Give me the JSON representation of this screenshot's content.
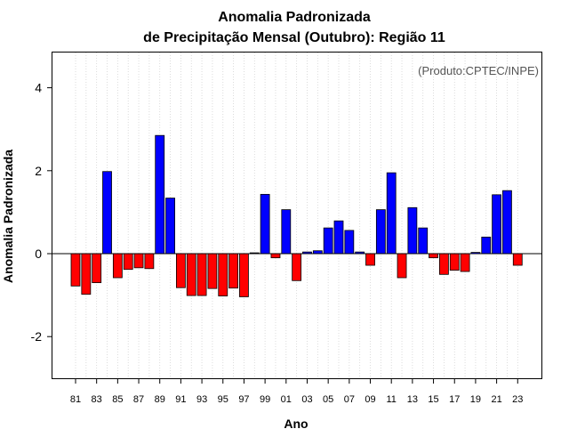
{
  "chart_data": {
    "type": "bar",
    "title_line1": "Anomalia Padronizada",
    "title_line2": "de Precipitação Mensal (Outubro): Região 11",
    "xlabel": "Ano",
    "ylabel": "Anomalia Padronizada",
    "source": "(Produto:CPTEC/INPE)",
    "ylim": [
      -3.0,
      4.8
    ],
    "yticks": [
      -2,
      0,
      2,
      4
    ],
    "ytick_labels": [
      "-2",
      "0",
      "2",
      "4"
    ],
    "categories": [
      "1981",
      "1982",
      "1983",
      "1984",
      "1985",
      "1986",
      "1987",
      "1988",
      "1989",
      "1990",
      "1991",
      "1992",
      "1993",
      "1994",
      "1995",
      "1996",
      "1997",
      "1998",
      "1999",
      "2000",
      "2001",
      "2002",
      "2003",
      "2004",
      "2005",
      "2006",
      "2007",
      "2008",
      "2009",
      "2010",
      "2011",
      "2012",
      "2013",
      "2014",
      "2015",
      "2016",
      "2017",
      "2018",
      "2019",
      "2020",
      "2021",
      "2022",
      "2023"
    ],
    "xtick_labels": [
      "81",
      "83",
      "85",
      "87",
      "89",
      "91",
      "93",
      "95",
      "97",
      "99",
      "01",
      "03",
      "05",
      "07",
      "09",
      "11",
      "13",
      "15",
      "17",
      "19",
      "21",
      "23"
    ],
    "values": [
      -0.78,
      -0.98,
      -0.7,
      1.98,
      -0.58,
      -0.38,
      -0.34,
      -0.36,
      2.85,
      1.34,
      -0.82,
      -1.01,
      -1.01,
      -0.84,
      -1.02,
      -0.83,
      -1.04,
      0.02,
      1.43,
      -0.1,
      1.06,
      -0.65,
      0.04,
      0.07,
      0.62,
      0.79,
      0.56,
      0.04,
      -0.28,
      1.06,
      1.95,
      -0.58,
      1.11,
      0.62,
      -0.1,
      -0.5,
      -0.4,
      -0.43,
      0.03,
      0.4,
      1.42,
      1.52,
      -0.28
    ],
    "grid": "vertical-dotted",
    "colors": {
      "positive": "#0000ff",
      "negative": "#ff0000",
      "zero_line": "#000000",
      "grid": "#d3d3d3"
    }
  }
}
